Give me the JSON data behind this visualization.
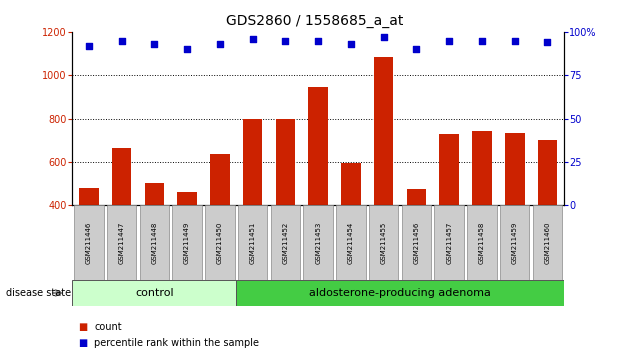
{
  "title": "GDS2860 / 1558685_a_at",
  "samples": [
    "GSM211446",
    "GSM211447",
    "GSM211448",
    "GSM211449",
    "GSM211450",
    "GSM211451",
    "GSM211452",
    "GSM211453",
    "GSM211454",
    "GSM211455",
    "GSM211456",
    "GSM211457",
    "GSM211458",
    "GSM211459",
    "GSM211460"
  ],
  "counts": [
    480,
    665,
    505,
    460,
    635,
    800,
    800,
    945,
    595,
    1085,
    475,
    730,
    745,
    735,
    700
  ],
  "percentile_ranks": [
    92,
    95,
    93,
    90,
    93,
    96,
    95,
    95,
    93,
    97,
    90,
    95,
    95,
    95,
    94
  ],
  "bar_color": "#cc2200",
  "dot_color": "#0000cc",
  "ylim_left": [
    400,
    1200
  ],
  "ylim_right": [
    0,
    100
  ],
  "yticks_left": [
    400,
    600,
    800,
    1000,
    1200
  ],
  "yticks_right": [
    0,
    25,
    50,
    75,
    100
  ],
  "grid_values": [
    600,
    800,
    1000
  ],
  "control_count": 5,
  "total_count": 15,
  "control_label": "control",
  "adenoma_label": "aldosterone-producing adenoma",
  "control_color": "#ccffcc",
  "adenoma_color": "#44cc44",
  "disease_state_label": "disease state",
  "legend_count_label": "count",
  "legend_percentile_label": "percentile rank within the sample",
  "left_ycolor": "#cc2200",
  "right_ycolor": "#0000cc",
  "bar_width": 0.6,
  "sample_box_color": "#cccccc",
  "title_fontsize": 10,
  "tick_fontsize": 7,
  "label_fontsize": 7,
  "group_fontsize": 8
}
